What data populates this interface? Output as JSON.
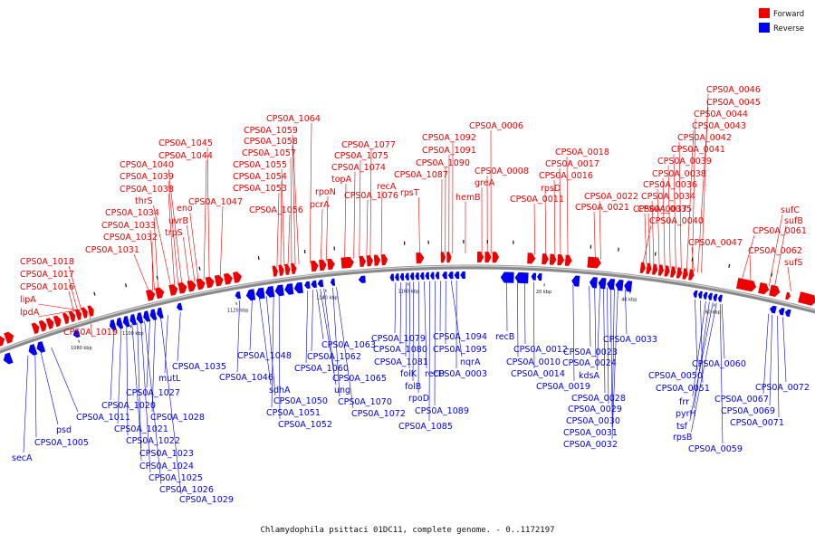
{
  "caption": "Chlamydophila psittaci 01DC11, complete genome. - 0..1172197",
  "legend": [
    {
      "label": "Forward",
      "color": "#ee0000"
    },
    {
      "label": "Reverse",
      "color": "#0000ee"
    }
  ],
  "colors": {
    "forward": "#ee0000",
    "reverse": "#0000ee",
    "backbone": "#8a8a8a"
  },
  "ticks": [
    "1080 kbp",
    "1100 kbp",
    "1120 kbp",
    "1140 kbp",
    "1160 kbp",
    "20 kbp",
    "40 kbp",
    "60 kbp"
  ],
  "forward_labels": [
    "lpdA",
    "lipA",
    "CPS0A_1016",
    "CPS0A_1017",
    "CPS0A_1018",
    "CPS0A_1019",
    "CPS0A_1031",
    "CPS0A_1032",
    "CPS0A_1033",
    "CPS0A_1034",
    "thrS",
    "CPS0A_1038",
    "CPS0A_1039",
    "CPS0A_1040",
    "trpS",
    "uvrB",
    "eno",
    "CPS0A_1044",
    "CPS0A_1045",
    "CPS0A_1047",
    "CPS0A_1053",
    "CPS0A_1054",
    "CPS0A_1055",
    "CPS0A_1056",
    "CPS0A_1057",
    "CPS0A_1058",
    "CPS0A_1059",
    "CPS0A_1064",
    "pcrA",
    "rpoN",
    "topA",
    "CPS0A_1074",
    "CPS0A_1075",
    "CPS0A_1076",
    "CPS0A_1077",
    "recA",
    "rpsT",
    "CPS0A_1087",
    "CPS0A_1090",
    "CPS0A_1091",
    "CPS0A_1092",
    "hemB",
    "greA",
    "CPS0A_0008",
    "CPS0A_0006",
    "CPS0A_0011",
    "rpsD",
    "CPS0A_0016",
    "CPS0A_0017",
    "CPS0A_0018",
    "CPS0A_0021",
    "CPS0A_0022",
    "CPS0A_0040",
    "CPS0A_0035",
    "CPS0A_0037",
    "CPS0A_0034",
    "CPS0A_0036",
    "CPS0A_0038",
    "CPS0A_0039",
    "CPS0A_0041",
    "CPS0A_0042",
    "CPS0A_0043",
    "CPS0A_0044",
    "CPS0A_0045",
    "CPS0A_0046",
    "CPS0A_0047",
    "CPS0A_0061",
    "CPS0A_0062",
    "sufC",
    "sufB",
    "sufS"
  ],
  "reverse_labels": [
    "secA",
    "CPS0A_1005",
    "psd",
    "CPS0A_1011",
    "CPS0A_1020",
    "CPS0A_1021",
    "CPS0A_1022",
    "CPS0A_1023",
    "CPS0A_1024",
    "CPS0A_1025",
    "CPS0A_1026",
    "CPS0A_1027",
    "CPS0A_1028",
    "CPS0A_1029",
    "mutL",
    "CPS0A_1035",
    "CPS0A_1046",
    "CPS0A_1048",
    "sdhA",
    "CPS0A_1050",
    "CPS0A_1051",
    "CPS0A_1052",
    "CPS0A_1060",
    "CPS0A_1062",
    "CPS0A_1063",
    "ung",
    "CPS0A_1065",
    "CPS0A_1070",
    "CPS0A_1072",
    "CPS0A_1079",
    "CPS0A_1080",
    "CPS0A_1081",
    "folK",
    "folB",
    "rpoD",
    "recD",
    "CPS0A_1085",
    "CPS0A_1089",
    "CPS0A_1094",
    "CPS0A_1095",
    "nqrA",
    "CPS0A_0003",
    "recB",
    "CPS0A_0010",
    "CPS0A_0012",
    "CPS0A_0014",
    "CPS0A_0019",
    "CPS0A_0023",
    "CPS0A_0024",
    "kdsA",
    "CPS0A_0028",
    "CPS0A_0029",
    "CPS0A_0030",
    "CPS0A_0031",
    "CPS0A_0032",
    "CPS0A_0033",
    "CPS0A_0050",
    "CPS0A_0051",
    "frr",
    "pyrH",
    "tsf",
    "rpsB",
    "CPS0A_0059",
    "CPS0A_0060",
    "CPS0A_0067",
    "CPS0A_0069",
    "CPS0A_0071",
    "CPS0A_0072"
  ]
}
